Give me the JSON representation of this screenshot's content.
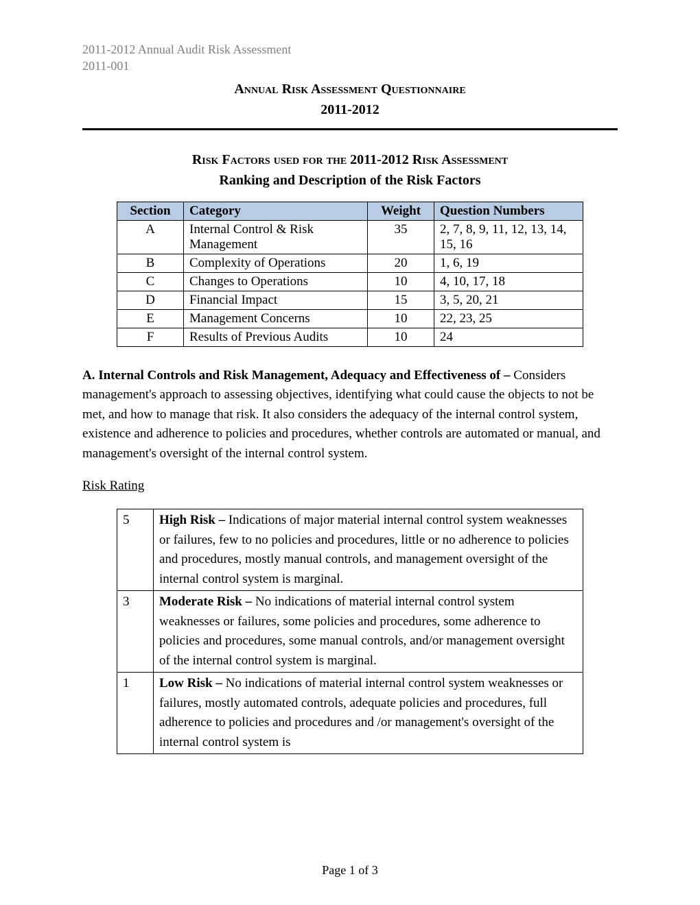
{
  "header": {
    "line1": "2011-2012 Annual Audit Risk Assessment",
    "line2": "2011-001"
  },
  "title": {
    "line1": "Annual Risk Assessment Questionnaire",
    "line2": "2011-2012"
  },
  "subtitle": {
    "line1": "Risk Factors used for the 2011-2012 Risk Assessment",
    "line2": "Ranking and Description of the Risk Factors"
  },
  "factorsTable": {
    "headers": {
      "section": "Section",
      "category": "Category",
      "weight": "Weight",
      "questions": "Question Numbers"
    },
    "rows": [
      {
        "section": "A",
        "category": "Internal Control & Risk Management",
        "weight": "35",
        "questions": "2, 7, 8, 9, 11, 12, 13, 14, 15, 16"
      },
      {
        "section": "B",
        "category": "Complexity of Operations",
        "weight": "20",
        "questions": "1, 6, 19"
      },
      {
        "section": "C",
        "category": "Changes to Operations",
        "weight": "10",
        "questions": "4, 10, 17, 18"
      },
      {
        "section": "D",
        "category": "Financial Impact",
        "weight": "15",
        "questions": "3, 5, 20, 21"
      },
      {
        "section": "E",
        "category": "Management Concerns",
        "weight": "10",
        "questions": "22, 23, 25"
      },
      {
        "section": "F",
        "category": "Results of Previous Audits",
        "weight": "10",
        "questions": "24"
      }
    ]
  },
  "sectionA": {
    "lead": "A.  Internal Controls and Risk Management, Adequacy and Effectiveness of – ",
    "body": "Considers management's approach to assessing objectives, identifying what could cause the objects to not be met, and how to manage that risk.  It also considers the adequacy of the internal control system, existence and adherence to policies and procedures, whether controls are automated or manual, and management's oversight of the internal control system."
  },
  "riskRatingLabel": "Risk Rating",
  "riskTable": {
    "rows": [
      {
        "level": "5",
        "lead": "High Risk – ",
        "desc": "Indications of major material internal control system weaknesses or failures, few to no policies and procedures, little or no adherence to policies and procedures, mostly manual controls, and management oversight of the internal control system is marginal."
      },
      {
        "level": "3",
        "lead": "Moderate Risk – ",
        "desc": "No indications of material internal control system weaknesses or failures, some policies and procedures, some adherence to policies and procedures, some manual controls, and/or management oversight of the internal control system is marginal."
      },
      {
        "level": "1",
        "lead": "Low Risk – ",
        "desc": "No indications of material internal control system weaknesses or failures, mostly automated controls, adequate policies and procedures, full adherence to policies and procedures and /or management's oversight of the internal control system is"
      }
    ]
  },
  "footer": "Page 1 of 3"
}
